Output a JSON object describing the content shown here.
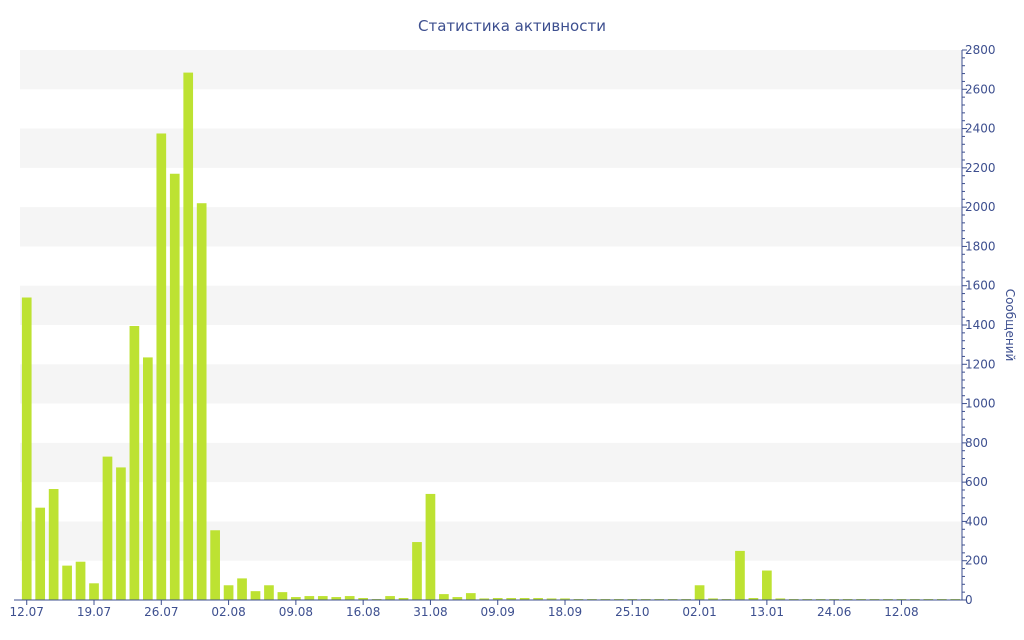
{
  "chart_data": {
    "type": "bar",
    "title": "Статистика активности",
    "xlabel": "",
    "ylabel": "Сообщений",
    "y_axis_position": "right",
    "ylim": [
      0,
      2800
    ],
    "yticks": [
      0,
      200,
      400,
      600,
      800,
      1000,
      1200,
      1400,
      1600,
      1800,
      2000,
      2200,
      2400,
      2600,
      2800
    ],
    "grid": "alternating horizontal bands",
    "bar_color": "#bde232",
    "band_color": "#f5f5f5",
    "text_color": "#3d4f8f",
    "x_tick_labels": [
      {
        "index": 0,
        "label": "12.07"
      },
      {
        "index": 5,
        "label": "19.07"
      },
      {
        "index": 10,
        "label": "26.07"
      },
      {
        "index": 15,
        "label": "02.08"
      },
      {
        "index": 20,
        "label": "09.08"
      },
      {
        "index": 25,
        "label": "16.08"
      },
      {
        "index": 30,
        "label": "31.08"
      },
      {
        "index": 35,
        "label": "09.09"
      },
      {
        "index": 40,
        "label": "18.09"
      },
      {
        "index": 45,
        "label": "25.10"
      },
      {
        "index": 50,
        "label": "02.01"
      },
      {
        "index": 55,
        "label": "13.01"
      },
      {
        "index": 60,
        "label": "24.06"
      },
      {
        "index": 65,
        "label": "12.08"
      }
    ],
    "values": [
      1540,
      470,
      565,
      175,
      195,
      85,
      730,
      675,
      1395,
      1235,
      2375,
      2170,
      2685,
      2020,
      355,
      75,
      110,
      45,
      75,
      40,
      15,
      20,
      20,
      15,
      20,
      10,
      5,
      20,
      10,
      295,
      540,
      30,
      15,
      35,
      8,
      10,
      10,
      10,
      10,
      8,
      8,
      5,
      5,
      5,
      5,
      5,
      5,
      5,
      5,
      5,
      75,
      8,
      5,
      250,
      10,
      150,
      8,
      5,
      5,
      5,
      5,
      5,
      5,
      5,
      5,
      5,
      5,
      5,
      5,
      5
    ]
  }
}
